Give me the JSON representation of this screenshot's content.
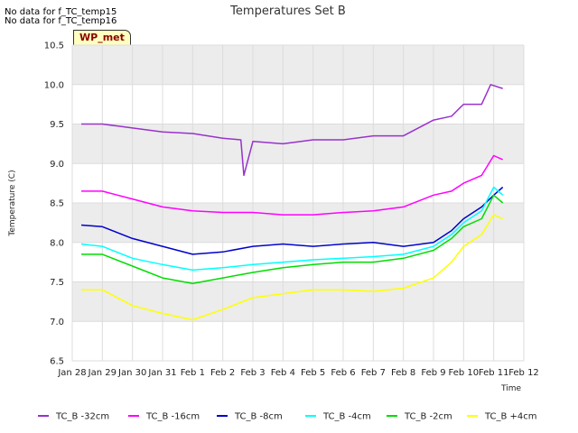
{
  "notes": [
    "No data for f_TC_temp15",
    "No data for f_TC_temp16"
  ],
  "badge": "WP_met",
  "chart_data": {
    "type": "line",
    "title": "Temperatures Set B",
    "xlabel": "Time",
    "ylabel": "Temperature (C)",
    "ylim": [
      6.5,
      10.5
    ],
    "yticks": [
      6.5,
      7.0,
      7.5,
      8.0,
      8.5,
      9.0,
      9.5,
      10.0,
      10.5
    ],
    "xticks": [
      "Jan 28",
      "Jan 29",
      "Jan 30",
      "Jan 31",
      "Feb 1",
      "Feb 2",
      "Feb 3",
      "Feb 4",
      "Feb 5",
      "Feb 6",
      "Feb 7",
      "Feb 8",
      "Feb 9",
      "Feb 10",
      "Feb 11",
      "Feb 12"
    ],
    "x_days": [
      0,
      1,
      2,
      3,
      4,
      5,
      6,
      7,
      8,
      9,
      10,
      11,
      12,
      13,
      14,
      15
    ],
    "grid": true,
    "legend_position": "bottom",
    "series": [
      {
        "name": "TC_B -32cm",
        "color": "#9932cc",
        "x": [
          0.3,
          1,
          2,
          3,
          4,
          5,
          5.6,
          5.7,
          6,
          7,
          8,
          9,
          10,
          11,
          12,
          12.6,
          13,
          13.6,
          13.9,
          14.3
        ],
        "values": [
          9.5,
          9.5,
          9.45,
          9.4,
          9.38,
          9.32,
          9.3,
          8.85,
          9.28,
          9.25,
          9.3,
          9.3,
          9.35,
          9.35,
          9.55,
          9.6,
          9.75,
          9.75,
          10.0,
          9.95
        ]
      },
      {
        "name": "TC_B -16cm",
        "color": "#ff00ff",
        "x": [
          0.3,
          1,
          2,
          3,
          4,
          5,
          6,
          7,
          8,
          9,
          10,
          11,
          12,
          12.6,
          13,
          13.6,
          14,
          14.3
        ],
        "values": [
          8.65,
          8.65,
          8.55,
          8.45,
          8.4,
          8.38,
          8.38,
          8.35,
          8.35,
          8.38,
          8.4,
          8.45,
          8.6,
          8.65,
          8.75,
          8.85,
          9.1,
          9.05
        ]
      },
      {
        "name": "TC_B -8cm",
        "color": "#0000cd",
        "x": [
          0.3,
          1,
          2,
          3,
          4,
          5,
          6,
          7,
          8,
          9,
          10,
          11,
          12,
          12.6,
          13,
          13.6,
          14,
          14.3
        ],
        "values": [
          8.22,
          8.2,
          8.05,
          7.95,
          7.85,
          7.88,
          7.95,
          7.98,
          7.95,
          7.98,
          8.0,
          7.95,
          8.0,
          8.15,
          8.3,
          8.45,
          8.6,
          8.7
        ]
      },
      {
        "name": "TC_B -4cm",
        "color": "#00ffff",
        "x": [
          0.3,
          1,
          2,
          3,
          4,
          5,
          6,
          7,
          8,
          9,
          10,
          11,
          12,
          12.6,
          13,
          13.6,
          14,
          14.3
        ],
        "values": [
          7.98,
          7.95,
          7.8,
          7.72,
          7.65,
          7.68,
          7.72,
          7.75,
          7.78,
          7.8,
          7.82,
          7.85,
          7.95,
          8.1,
          8.25,
          8.4,
          8.7,
          8.6
        ]
      },
      {
        "name": "TC_B -2cm",
        "color": "#00dd00",
        "x": [
          0.3,
          1,
          2,
          3,
          4,
          5,
          6,
          7,
          8,
          9,
          10,
          11,
          12,
          12.6,
          13,
          13.6,
          14,
          14.3
        ],
        "values": [
          7.85,
          7.85,
          7.7,
          7.55,
          7.48,
          7.55,
          7.62,
          7.68,
          7.72,
          7.75,
          7.75,
          7.8,
          7.9,
          8.05,
          8.2,
          8.3,
          8.6,
          8.5
        ]
      },
      {
        "name": "TC_B +4cm",
        "color": "#ffff00",
        "x": [
          0.3,
          1,
          2,
          3,
          4,
          5,
          6,
          7,
          8,
          9,
          10,
          11,
          12,
          12.6,
          13,
          13.6,
          14,
          14.3
        ],
        "values": [
          7.4,
          7.4,
          7.2,
          7.1,
          7.02,
          7.15,
          7.3,
          7.35,
          7.4,
          7.4,
          7.38,
          7.42,
          7.55,
          7.75,
          7.95,
          8.1,
          8.35,
          8.3
        ]
      }
    ]
  }
}
